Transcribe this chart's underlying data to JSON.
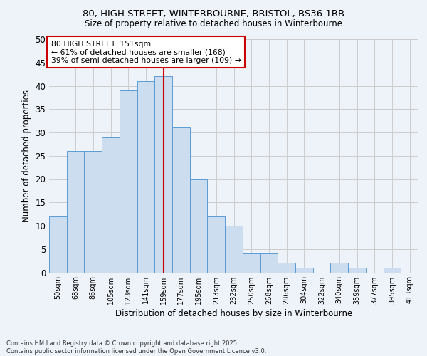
{
  "title_line1": "80, HIGH STREET, WINTERBOURNE, BRISTOL, BS36 1RB",
  "title_line2": "Size of property relative to detached houses in Winterbourne",
  "xlabel": "Distribution of detached houses by size in Winterbourne",
  "ylabel": "Number of detached properties",
  "categories": [
    "50sqm",
    "68sqm",
    "86sqm",
    "105sqm",
    "123sqm",
    "141sqm",
    "159sqm",
    "177sqm",
    "195sqm",
    "213sqm",
    "232sqm",
    "250sqm",
    "268sqm",
    "286sqm",
    "304sqm",
    "322sqm",
    "340sqm",
    "359sqm",
    "377sqm",
    "395sqm",
    "413sqm"
  ],
  "values": [
    12,
    26,
    26,
    29,
    39,
    41,
    42,
    31,
    20,
    12,
    10,
    4,
    4,
    2,
    1,
    0,
    2,
    1,
    0,
    1,
    0
  ],
  "bar_color": "#ccddf0",
  "bar_edge_color": "#5b9bd5",
  "bar_width": 1.0,
  "reference_line_x": 6,
  "reference_line_color": "#cc0000",
  "annotation_text": "80 HIGH STREET: 151sqm\n← 61% of detached houses are smaller (168)\n39% of semi-detached houses are larger (109) →",
  "annotation_box_color": "#ffffff",
  "annotation_box_edge_color": "#cc0000",
  "ylim": [
    0,
    50
  ],
  "yticks": [
    0,
    5,
    10,
    15,
    20,
    25,
    30,
    35,
    40,
    45,
    50
  ],
  "grid_color": "#cccccc",
  "background_color": "#eef2f9",
  "footer_text": "Contains HM Land Registry data © Crown copyright and database right 2025.\nContains public sector information licensed under the Open Government Licence v3.0."
}
